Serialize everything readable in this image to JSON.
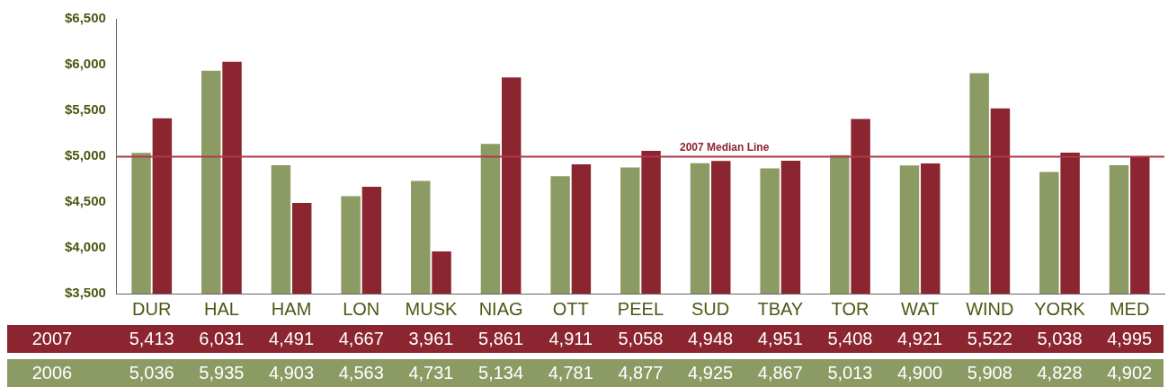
{
  "chart_data": {
    "type": "bar",
    "categories": [
      "DUR",
      "HAL",
      "HAM",
      "LON",
      "MUSK",
      "NIAG",
      "OTT",
      "PEEL",
      "SUD",
      "TBAY",
      "TOR",
      "WAT",
      "WIND",
      "YORK",
      "MED"
    ],
    "series": [
      {
        "name": "2006",
        "color": "#8c9a64",
        "values": [
          5036,
          5935,
          4903,
          4563,
          4731,
          5134,
          4781,
          4877,
          4925,
          4867,
          5013,
          4900,
          5908,
          4828,
          4902
        ],
        "value_labels": [
          "5,036",
          "5,935",
          "4,903",
          "4,563",
          "4,731",
          "5,134",
          "4,781",
          "4,877",
          "4,925",
          "4,867",
          "5,013",
          "4,900",
          "5,908",
          "4,828",
          "4,902"
        ]
      },
      {
        "name": "2007",
        "color": "#8b2530",
        "values": [
          5413,
          6031,
          4491,
          4667,
          3961,
          5861,
          4911,
          5058,
          4948,
          4951,
          5408,
          4921,
          5522,
          5038,
          4995
        ],
        "value_labels": [
          "5,413",
          "6,031",
          "4,491",
          "4,667",
          "3,961",
          "5,861",
          "4,911",
          "5,058",
          "4,948",
          "4,951",
          "5,408",
          "4,921",
          "5,522",
          "5,038",
          "4,995"
        ]
      }
    ],
    "ylim": [
      3500,
      6500
    ],
    "yticks": [
      {
        "value": 3500,
        "label": "$3,500"
      },
      {
        "value": 4000,
        "label": "$4,000"
      },
      {
        "value": 4500,
        "label": "$4,500"
      },
      {
        "value": 5000,
        "label": "$5,000"
      },
      {
        "value": 5500,
        "label": "$5,500"
      },
      {
        "value": 6000,
        "label": "$6,000"
      },
      {
        "value": 6500,
        "label": "$6,500"
      }
    ],
    "ref_lines": [
      {
        "axis": "y",
        "value": 4995,
        "label": "2007 Median Line",
        "color": "#b03a48"
      }
    ],
    "grid": false,
    "legend": false
  }
}
